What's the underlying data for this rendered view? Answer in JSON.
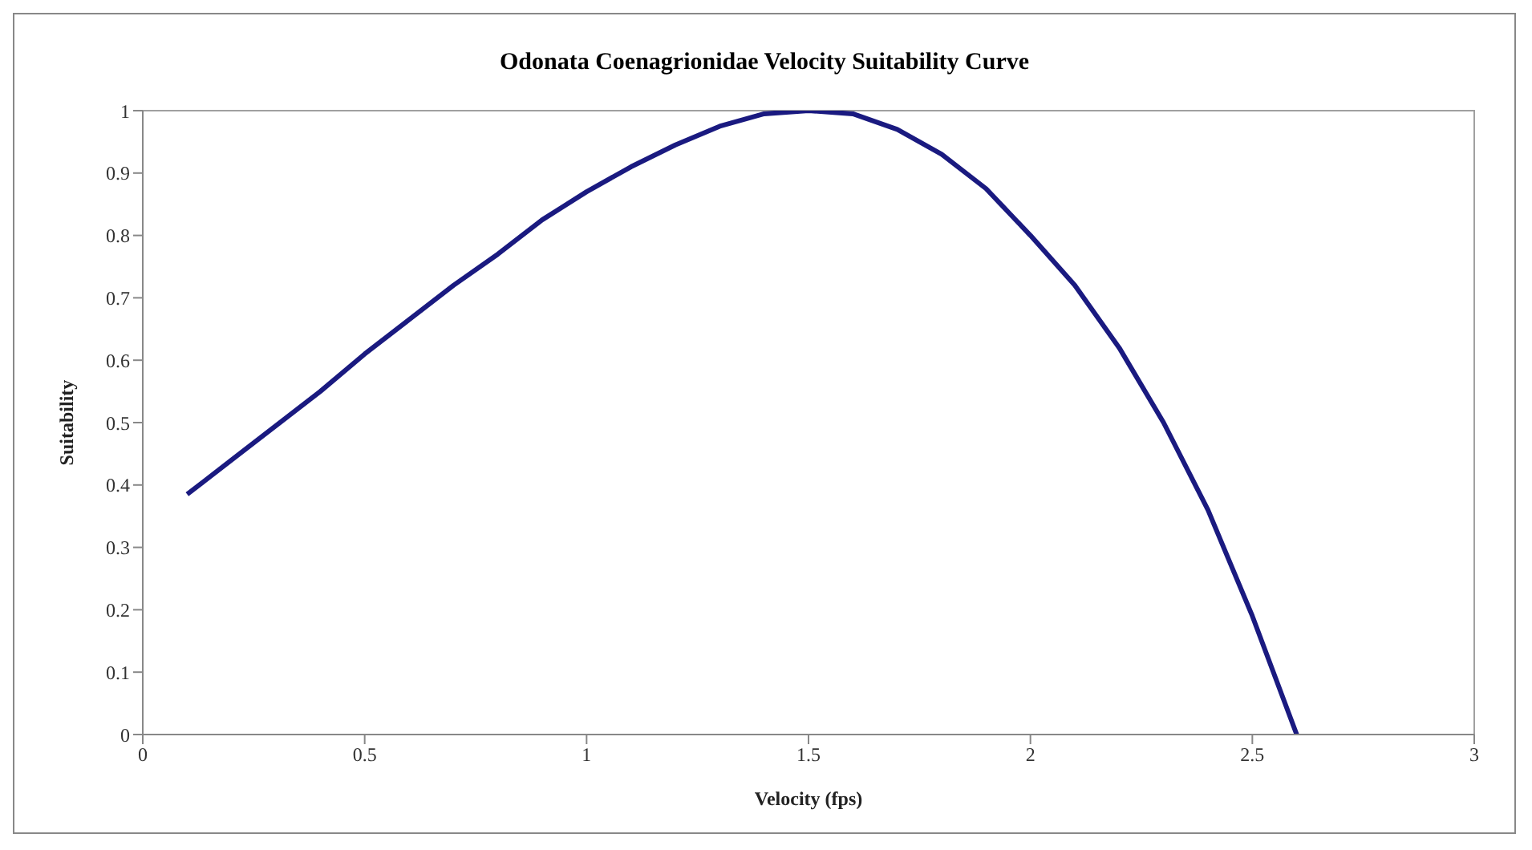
{
  "chart_data": {
    "type": "line",
    "title": "Odonata Coenagrionidae Velocity Suitability Curve",
    "xlabel": "Velocity (fps)",
    "ylabel": "Suitability",
    "x": [
      0.1,
      0.2,
      0.3,
      0.4,
      0.5,
      0.6,
      0.7,
      0.8,
      0.9,
      1.0,
      1.1,
      1.2,
      1.3,
      1.4,
      1.5,
      1.6,
      1.7,
      1.8,
      1.9,
      2.0,
      2.1,
      2.2,
      2.3,
      2.4,
      2.5,
      2.6
    ],
    "series": [
      {
        "color": "#1a1a80",
        "values": [
          0.385,
          0.44,
          0.495,
          0.55,
          0.61,
          0.665,
          0.72,
          0.77,
          0.825,
          0.87,
          0.91,
          0.945,
          0.975,
          0.995,
          1.0,
          0.995,
          0.97,
          0.93,
          0.875,
          0.8,
          0.72,
          0.62,
          0.5,
          0.36,
          0.19,
          0.0
        ]
      }
    ],
    "xlim": [
      0,
      3
    ],
    "xticks": [
      0,
      0.5,
      1,
      1.5,
      2,
      2.5,
      3
    ],
    "ylim": [
      0,
      1
    ],
    "yticks": [
      0,
      0.1,
      0.2,
      0.3,
      0.4,
      0.5,
      0.6,
      0.7,
      0.8,
      0.9,
      1
    ],
    "grid": false,
    "legend": false,
    "marker": "none",
    "line_style": "solid"
  }
}
